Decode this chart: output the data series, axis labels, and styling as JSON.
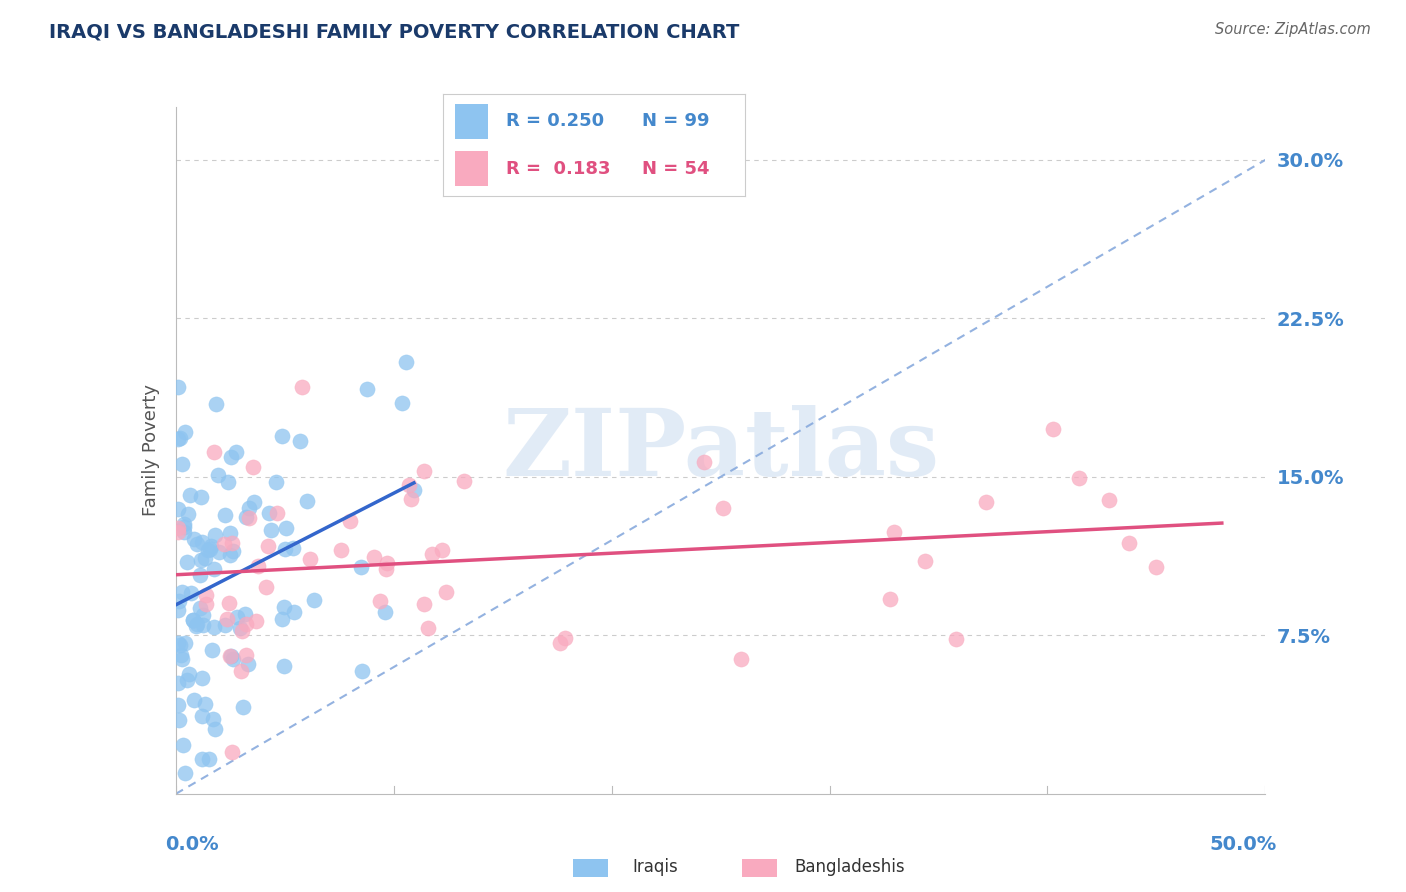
{
  "title": "IRAQI VS BANGLADESHI FAMILY POVERTY CORRELATION CHART",
  "source": "Source: ZipAtlas.com",
  "ylabel": "Family Poverty",
  "yticks": [
    "7.5%",
    "15.0%",
    "22.5%",
    "30.0%"
  ],
  "ytick_vals": [
    0.075,
    0.15,
    0.225,
    0.3
  ],
  "xlim": [
    0.0,
    0.5
  ],
  "ylim": [
    0.0,
    0.325
  ],
  "iraqis_color": "#8EC4F0",
  "bangladeshis_color": "#F9AABF",
  "iraqis_line_color": "#3366CC",
  "bangladeshis_line_color": "#E05080",
  "ref_line_color": "#88AADD",
  "legend_r1": "R = 0.250",
  "legend_n1": "N = 99",
  "legend_r2": "R =  0.183",
  "legend_n2": "N = 54",
  "legend_label1": "Iraqis",
  "legend_label2": "Bangladeshis",
  "title_color": "#1A3A6A",
  "tick_color": "#4488CC",
  "watermark": "ZIPatlas"
}
